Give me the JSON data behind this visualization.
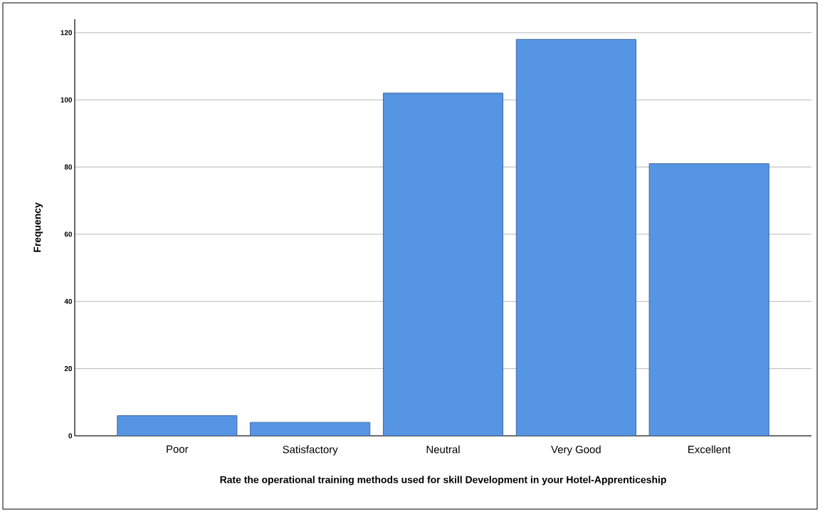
{
  "chart_data": {
    "type": "bar",
    "xlabel": "Rate the operational training methods used for skill Development in your Hotel-Apprenticeship",
    "ylabel": "Frequency",
    "categories": [
      "Poor",
      "Satisfactory",
      "Neutral",
      "Very Good",
      "Excellent"
    ],
    "values": [
      6,
      4,
      102,
      118,
      81
    ],
    "color": "#5595e3",
    "ylim": [
      0,
      124
    ],
    "yticks": [
      0,
      20,
      40,
      60,
      80,
      100,
      120
    ],
    "grid": "y"
  }
}
